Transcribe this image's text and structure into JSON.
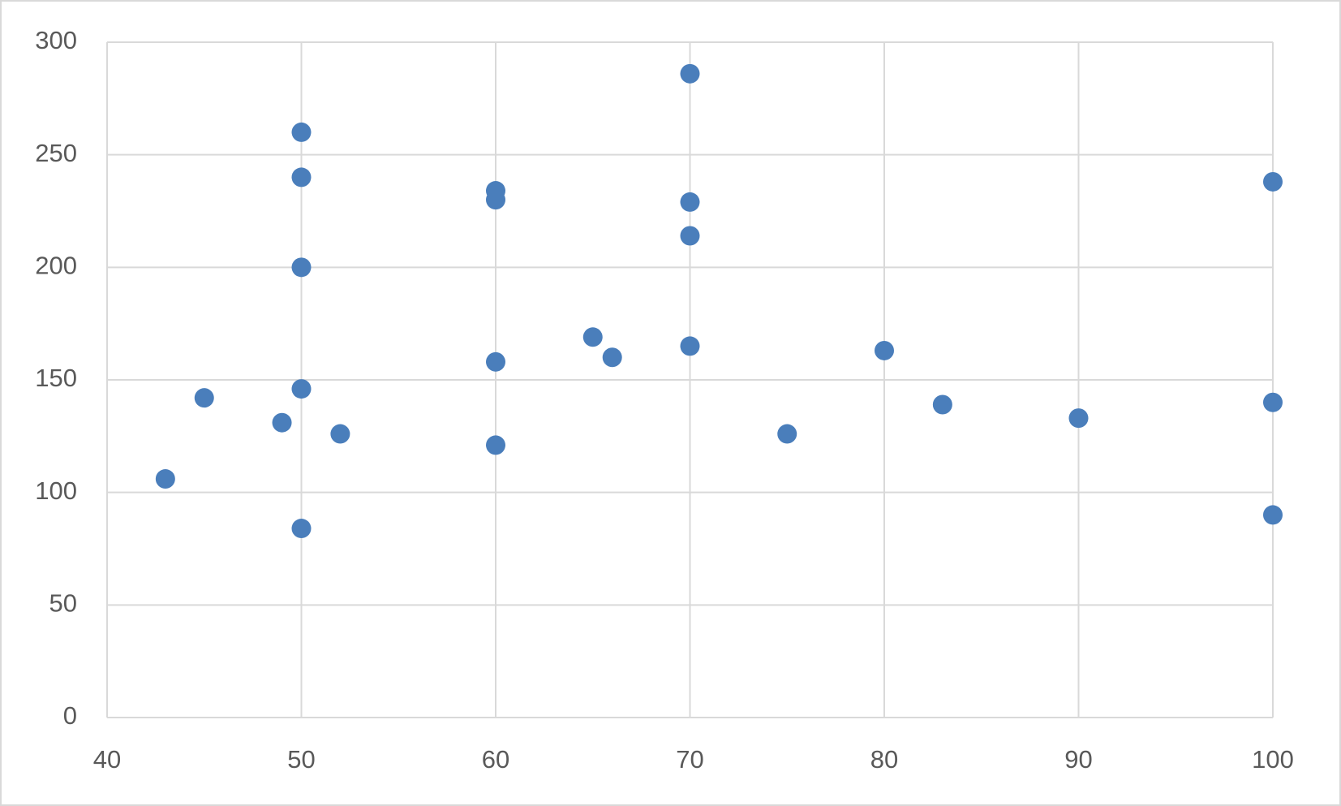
{
  "chart_data": {
    "type": "scatter",
    "series": [
      {
        "color": "#4a7ebb",
        "x": [
          43,
          45,
          49,
          50,
          50,
          50,
          50,
          50,
          52,
          60,
          60,
          60,
          60,
          65,
          66,
          70,
          70,
          70,
          70,
          75,
          80,
          83,
          90,
          100,
          100,
          100
        ],
        "values": [
          106,
          142,
          131,
          260,
          240,
          200,
          146,
          84,
          126,
          234,
          230,
          158,
          121,
          169,
          160,
          286,
          229,
          214,
          165,
          126,
          163,
          139,
          133,
          238,
          140,
          90
        ]
      }
    ],
    "xlim": [
      40,
      100
    ],
    "xticks": [
      40,
      50,
      60,
      70,
      80,
      90,
      100
    ],
    "ylim": [
      0,
      300
    ],
    "yticks": [
      0,
      50,
      100,
      150,
      200,
      250,
      300
    ],
    "grid": true
  }
}
